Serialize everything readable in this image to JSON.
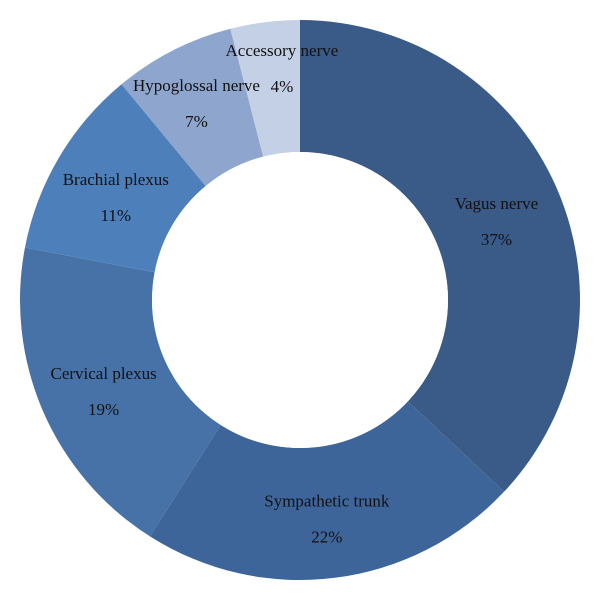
{
  "chart_data": {
    "type": "pie",
    "variant": "donut",
    "title": "",
    "start": "top",
    "direction": "clockwise",
    "slices": [
      {
        "label": "Vagus nerve",
        "value": 37,
        "value_label": "37%",
        "color": "#3a5a88"
      },
      {
        "label": "Sympathetic trunk",
        "value": 22,
        "value_label": "22%",
        "color": "#3e659a"
      },
      {
        "label": "Cervical plexus",
        "value": 19,
        "value_label": "19%",
        "color": "#4672a8"
      },
      {
        "label": "Brachial plexus",
        "value": 11,
        "value_label": "11%",
        "color": "#4d7fba"
      },
      {
        "label": "Hypoglossal nerve",
        "value": 7,
        "value_label": "7%",
        "color": "#8ea5cd"
      },
      {
        "label": "Accessory nerve",
        "value": 4,
        "value_label": "4%",
        "color": "#c4d0e5"
      }
    ]
  }
}
